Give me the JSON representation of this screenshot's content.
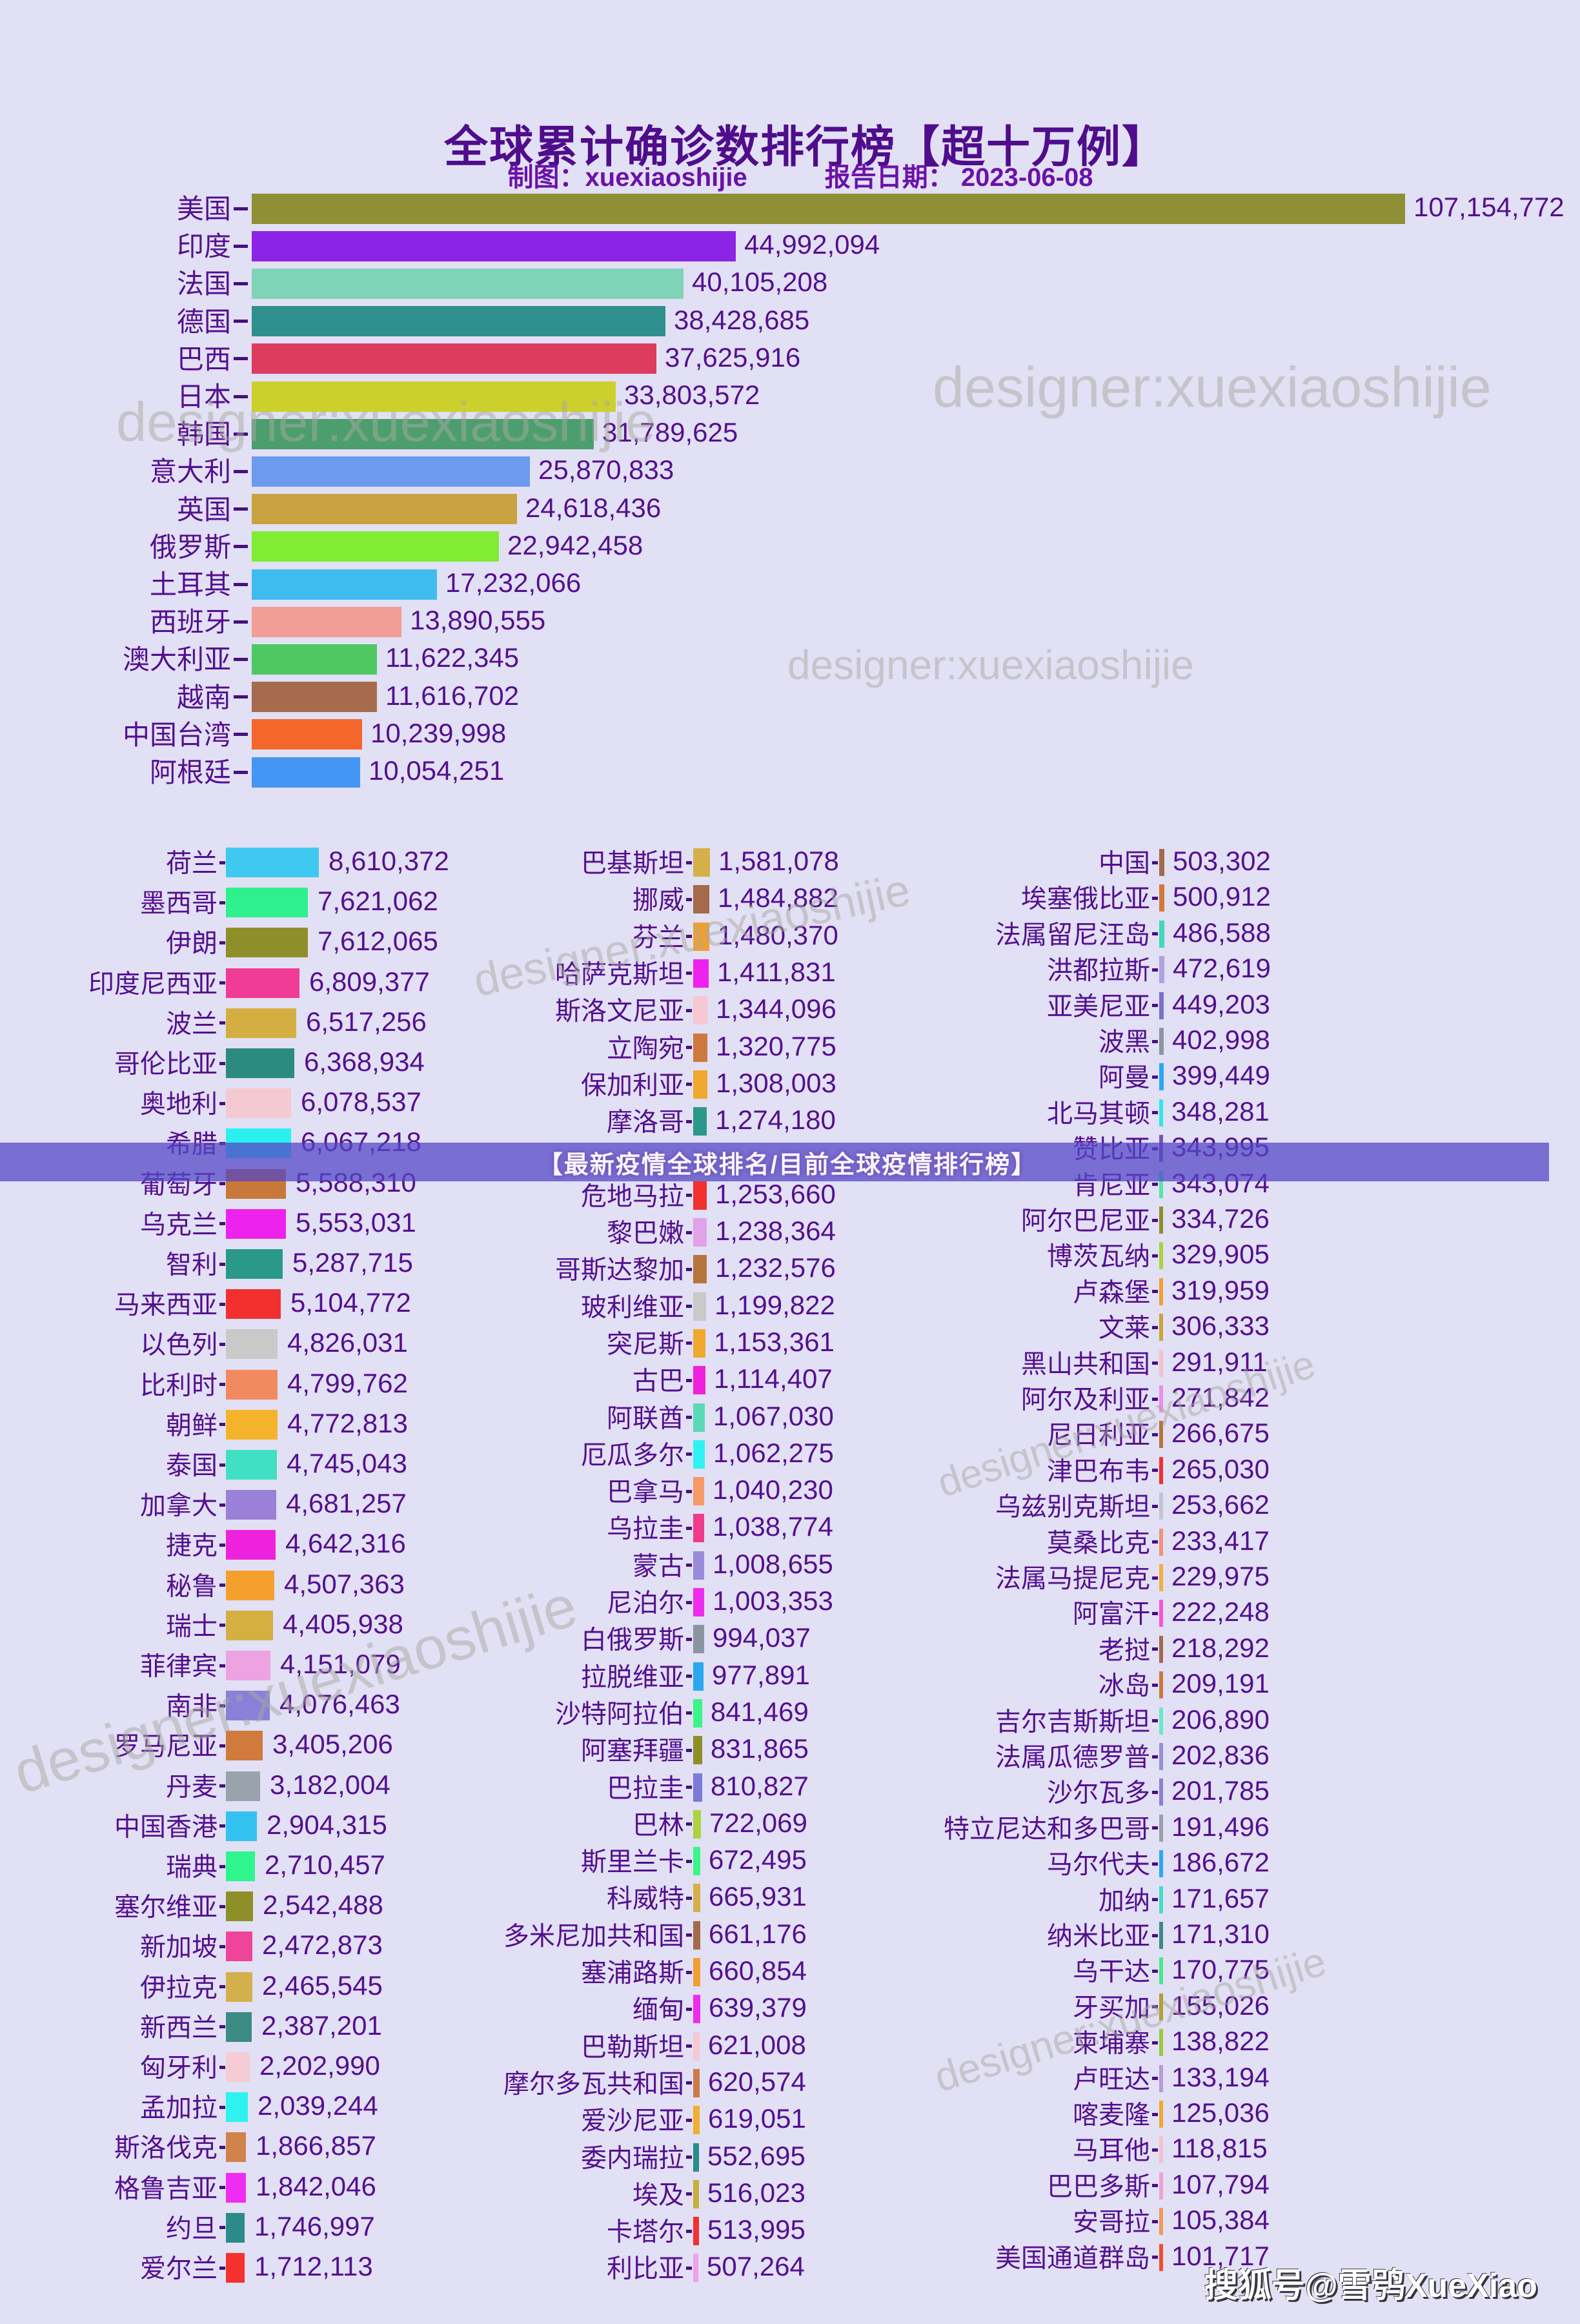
{
  "page": {
    "title": "全球累计确诊数排行榜【超十万例】",
    "credit_label": "制图：xuexiaoshijie",
    "report_date_label": "报告日期： 2023-06-08",
    "banner_text": "【最新疫情全球排名/目前全球疫情排行榜】",
    "watermark_text": "designer:xuexiaoshijie",
    "sohu_badge": "搜狐号@雪鸮XueXiao"
  },
  "colors": {
    "background": "#e2e0f4",
    "title": "#4f0d8c",
    "subtitle": "#6a12a8",
    "row_text": "#54108f",
    "tick": "#45107e",
    "banner_bg": "rgba(84,70,198,0.74)",
    "banner_text": "#fdf4fd",
    "watermark": "rgba(168,168,160,0.5)"
  },
  "chart_data": {
    "type": "bar",
    "orientation": "horizontal",
    "title": "全球累计确诊数排行榜【超十万例】",
    "report_date": "2023-06-08",
    "max_value": 107154772,
    "top_chart": [
      {
        "name": "美国",
        "value": 107154772,
        "color": "#8f8f36"
      },
      {
        "name": "印度",
        "value": 44992094,
        "color": "#8b24e4"
      },
      {
        "name": "法国",
        "value": 40105208,
        "color": "#7fd4b8"
      },
      {
        "name": "德国",
        "value": 38428685,
        "color": "#2f8f8f"
      },
      {
        "name": "巴西",
        "value": 37625916,
        "color": "#dd3c5e"
      },
      {
        "name": "日本",
        "value": 33803572,
        "color": "#cdd02c"
      },
      {
        "name": "韩国",
        "value": 31789625,
        "color": "#4d9e6e"
      },
      {
        "name": "意大利",
        "value": 25870833,
        "color": "#6b9aef"
      },
      {
        "name": "英国",
        "value": 24618436,
        "color": "#c9a240"
      },
      {
        "name": "俄罗斯",
        "value": 22942458,
        "color": "#80ec33"
      },
      {
        "name": "土耳其",
        "value": 17232066,
        "color": "#3fbbf0"
      },
      {
        "name": "西班牙",
        "value": 13890555,
        "color": "#f29d95"
      },
      {
        "name": "澳大利亚",
        "value": 11622345,
        "color": "#4fc862"
      },
      {
        "name": "越南",
        "value": 11616702,
        "color": "#a66b4d"
      },
      {
        "name": "中国台湾",
        "value": 10239998,
        "color": "#f4662c"
      },
      {
        "name": "阿根廷",
        "value": 10054251,
        "color": "#4496f4"
      }
    ],
    "columns": [
      [
        {
          "name": "荷兰",
          "value": 8610372,
          "color": "#3fc8f0"
        },
        {
          "name": "墨西哥",
          "value": 7621062,
          "color": "#2ef08c"
        },
        {
          "name": "伊朗",
          "value": 7612065,
          "color": "#8f8f2a"
        },
        {
          "name": "印度尼西亚",
          "value": 6809377,
          "color": "#f03c96"
        },
        {
          "name": "波兰",
          "value": 6517256,
          "color": "#d4ae40"
        },
        {
          "name": "哥伦比亚",
          "value": 6368934,
          "color": "#2b8b80"
        },
        {
          "name": "奥地利",
          "value": 6078537,
          "color": "#f5c9d2"
        },
        {
          "name": "希腊",
          "value": 6067218,
          "color": "#2cf0f0"
        },
        {
          "name": "葡萄牙",
          "value": 5588310,
          "color": "#c87838"
        },
        {
          "name": "乌克兰",
          "value": 5553031,
          "color": "#ee22ee"
        },
        {
          "name": "智利",
          "value": 5287715,
          "color": "#2b998a"
        },
        {
          "name": "马来西亚",
          "value": 5104772,
          "color": "#f2302e"
        },
        {
          "name": "以色列",
          "value": 4826031,
          "color": "#c9c9c9"
        },
        {
          "name": "比利时",
          "value": 4799762,
          "color": "#f28a60"
        },
        {
          "name": "朝鲜",
          "value": 4772813,
          "color": "#f5b32c"
        },
        {
          "name": "泰国",
          "value": 4745043,
          "color": "#40e0c4"
        },
        {
          "name": "加拿大",
          "value": 4681257,
          "color": "#9a80d8"
        },
        {
          "name": "捷克",
          "value": 4642316,
          "color": "#ee22dd"
        },
        {
          "name": "秘鲁",
          "value": 4507363,
          "color": "#f5a02c"
        },
        {
          "name": "瑞士",
          "value": 4405938,
          "color": "#d4b042"
        },
        {
          "name": "菲律宾",
          "value": 4151079,
          "color": "#eda2e2"
        },
        {
          "name": "南非",
          "value": 4076463,
          "color": "#8a80d8"
        },
        {
          "name": "罗马尼亚",
          "value": 3405206,
          "color": "#d07a3c"
        },
        {
          "name": "丹麦",
          "value": 3182004,
          "color": "#9aa2ac"
        },
        {
          "name": "中国香港",
          "value": 2904315,
          "color": "#33c2f0"
        },
        {
          "name": "瑞典",
          "value": 2710457,
          "color": "#2ef58c"
        },
        {
          "name": "塞尔维亚",
          "value": 2542488,
          "color": "#8f8f2a"
        },
        {
          "name": "新加坡",
          "value": 2472873,
          "color": "#f0439a"
        },
        {
          "name": "伊拉克",
          "value": 2465545,
          "color": "#d4b04c"
        },
        {
          "name": "新西兰",
          "value": 2387201,
          "color": "#3b8b82"
        },
        {
          "name": "匈牙利",
          "value": 2202990,
          "color": "#f5ccd4"
        },
        {
          "name": "孟加拉",
          "value": 2039244,
          "color": "#2ef2ee"
        },
        {
          "name": "斯洛伐克",
          "value": 1866857,
          "color": "#d0824a"
        },
        {
          "name": "格鲁吉亚",
          "value": 1842046,
          "color": "#ee2cf2"
        },
        {
          "name": "约旦",
          "value": 1746997,
          "color": "#2b8b8b"
        },
        {
          "name": "爱尔兰",
          "value": 1712113,
          "color": "#f5312e"
        }
      ],
      [
        {
          "name": "巴基斯坦",
          "value": 1581078,
          "color": "#d4b04a"
        },
        {
          "name": "挪威",
          "value": 1484882,
          "color": "#a5694c"
        },
        {
          "name": "芬兰",
          "value": 1480370,
          "color": "#f0a030"
        },
        {
          "name": "哈萨克斯坦",
          "value": 1411831,
          "color": "#ee22ee"
        },
        {
          "name": "斯洛文尼亚",
          "value": 1344096,
          "color": "#f5c8d4"
        },
        {
          "name": "立陶宛",
          "value": 1320775,
          "color": "#cd7a3e"
        },
        {
          "name": "保加利亚",
          "value": 1308003,
          "color": "#f0a830"
        },
        {
          "name": "摩洛哥",
          "value": 1274180,
          "color": "#2b998a"
        },
        {
          "gap": true
        },
        {
          "name": "危地马拉",
          "value": 1253660,
          "color": "#f2302e"
        },
        {
          "name": "黎巴嫩",
          "value": 1238364,
          "color": "#e0a2e8"
        },
        {
          "name": "哥斯达黎加",
          "value": 1232576,
          "color": "#b5743e"
        },
        {
          "name": "玻利维亚",
          "value": 1199822,
          "color": "#c9c9c9"
        },
        {
          "name": "突尼斯",
          "value": 1153361,
          "color": "#f0a830"
        },
        {
          "name": "古巴",
          "value": 1114407,
          "color": "#ee22dd"
        },
        {
          "name": "阿联酋",
          "value": 1067030,
          "color": "#5ad8b8"
        },
        {
          "name": "厄瓜多尔",
          "value": 1062275,
          "color": "#2ef2f2"
        },
        {
          "name": "巴拿马",
          "value": 1040230,
          "color": "#f59a68"
        },
        {
          "name": "乌拉圭",
          "value": 1038774,
          "color": "#f03a8a"
        },
        {
          "name": "蒙古",
          "value": 1008655,
          "color": "#9a8ad8"
        },
        {
          "name": "尼泊尔",
          "value": 1003353,
          "color": "#ee2cee"
        },
        {
          "name": "白俄罗斯",
          "value": 994037,
          "color": "#8a95a0"
        },
        {
          "name": "拉脱维亚",
          "value": 977891,
          "color": "#2aa8f0"
        },
        {
          "name": "沙特阿拉伯",
          "value": 841469,
          "color": "#3af58a"
        },
        {
          "name": "阿塞拜疆",
          "value": 831865,
          "color": "#8f8f2a"
        },
        {
          "name": "巴拉圭",
          "value": 810827,
          "color": "#7a7ad8"
        },
        {
          "name": "巴林",
          "value": 722069,
          "color": "#aad440"
        },
        {
          "name": "斯里兰卡",
          "value": 672495,
          "color": "#3af58a"
        },
        {
          "name": "科威特",
          "value": 665931,
          "color": "#d4b04a"
        },
        {
          "name": "多米尼加共和国",
          "value": 661176,
          "color": "#a5694c"
        },
        {
          "name": "塞浦路斯",
          "value": 660854,
          "color": "#f0a030"
        },
        {
          "name": "缅甸",
          "value": 639379,
          "color": "#ee2cee"
        },
        {
          "name": "巴勒斯坦",
          "value": 621008,
          "color": "#f5c8d4"
        },
        {
          "name": "摩尔多瓦共和国",
          "value": 620574,
          "color": "#cd7a4a"
        },
        {
          "name": "爱沙尼亚",
          "value": 619051,
          "color": "#f0b030"
        },
        {
          "name": "委内瑞拉",
          "value": 552695,
          "color": "#2b8b8b"
        },
        {
          "name": "埃及",
          "value": 516023,
          "color": "#c4b03a"
        },
        {
          "name": "卡塔尔",
          "value": 513995,
          "color": "#f23030"
        },
        {
          "name": "利比亚",
          "value": 507264,
          "color": "#eda2e8"
        }
      ],
      [
        {
          "name": "中国",
          "value": 503302,
          "color": "#a5694c"
        },
        {
          "name": "埃塞俄比亚",
          "value": 500912,
          "color": "#d07a3c"
        },
        {
          "name": "法属留尼汪岛",
          "value": 486588,
          "color": "#40d8b8"
        },
        {
          "name": "洪都拉斯",
          "value": 472619,
          "color": "#b0a2e0"
        },
        {
          "name": "亚美尼亚",
          "value": 449203,
          "color": "#7a70cc"
        },
        {
          "name": "波黑",
          "value": 402998,
          "color": "#8a95a0"
        },
        {
          "name": "阿曼",
          "value": 399449,
          "color": "#2aa8f0"
        },
        {
          "name": "北马其顿",
          "value": 348281,
          "color": "#2ee8e8"
        },
        {
          "name": "赞比亚",
          "value": 343995,
          "color": "#7755bb"
        },
        {
          "name": "肯尼亚",
          "value": 343074,
          "color": "#50e8a8"
        },
        {
          "name": "阿尔巴尼亚",
          "value": 334726,
          "color": "#8f8f2a"
        },
        {
          "name": "博茨瓦纳",
          "value": 329905,
          "color": "#aad440"
        },
        {
          "name": "卢森堡",
          "value": 319959,
          "color": "#f0a030"
        },
        {
          "name": "文莱",
          "value": 306333,
          "color": "#c8a43a"
        },
        {
          "name": "黑山共和国",
          "value": 291911,
          "color": "#f5c0cc"
        },
        {
          "name": "阿尔及利亚",
          "value": 271842,
          "color": "#ee8aee"
        },
        {
          "name": "尼日利亚",
          "value": 266675,
          "color": "#b5743e"
        },
        {
          "name": "津巴布韦",
          "value": 265030,
          "color": "#f23030"
        },
        {
          "name": "乌兹别克斯坦",
          "value": 253662,
          "color": "#c4c4cc"
        },
        {
          "name": "莫桑比克",
          "value": 233417,
          "color": "#f0937a"
        },
        {
          "name": "法属马提尼克",
          "value": 229975,
          "color": "#f0b040"
        },
        {
          "name": "阿富汗",
          "value": 222248,
          "color": "#f556d8"
        },
        {
          "name": "老挝",
          "value": 218292,
          "color": "#a5694c"
        },
        {
          "name": "冰岛",
          "value": 209191,
          "color": "#c87a3e"
        },
        {
          "name": "吉尔吉斯斯坦",
          "value": 206890,
          "color": "#6ae8c8"
        },
        {
          "name": "法属瓜德罗普",
          "value": 202836,
          "color": "#9a90d8"
        },
        {
          "name": "沙尔瓦多",
          "value": 201785,
          "color": "#8a80d0"
        },
        {
          "name": "特立尼达和多巴哥",
          "value": 191496,
          "color": "#9aa0a8"
        },
        {
          "name": "马尔代夫",
          "value": 186672,
          "color": "#2aa8f0"
        },
        {
          "name": "加纳",
          "value": 171657,
          "color": "#40e0c8"
        },
        {
          "name": "纳米比亚",
          "value": 171310,
          "color": "#3a8a8a"
        },
        {
          "name": "乌干达",
          "value": 170775,
          "color": "#4ae88a"
        },
        {
          "name": "牙买加",
          "value": 155026,
          "color": "#b0a030"
        },
        {
          "name": "柬埔寨",
          "value": 138822,
          "color": "#9ac842"
        },
        {
          "name": "卢旺达",
          "value": 133194,
          "color": "#b89ad8"
        },
        {
          "name": "喀麦隆",
          "value": 125036,
          "color": "#f0a830"
        },
        {
          "name": "马耳他",
          "value": 118815,
          "color": "#f5c0d0"
        },
        {
          "name": "巴巴多斯",
          "value": 107794,
          "color": "#f0a0d8"
        },
        {
          "name": "安哥拉",
          "value": 105384,
          "color": "#f09a5a"
        },
        {
          "name": "美国通道群岛",
          "value": 101717,
          "color": "#f05030"
        }
      ]
    ]
  }
}
